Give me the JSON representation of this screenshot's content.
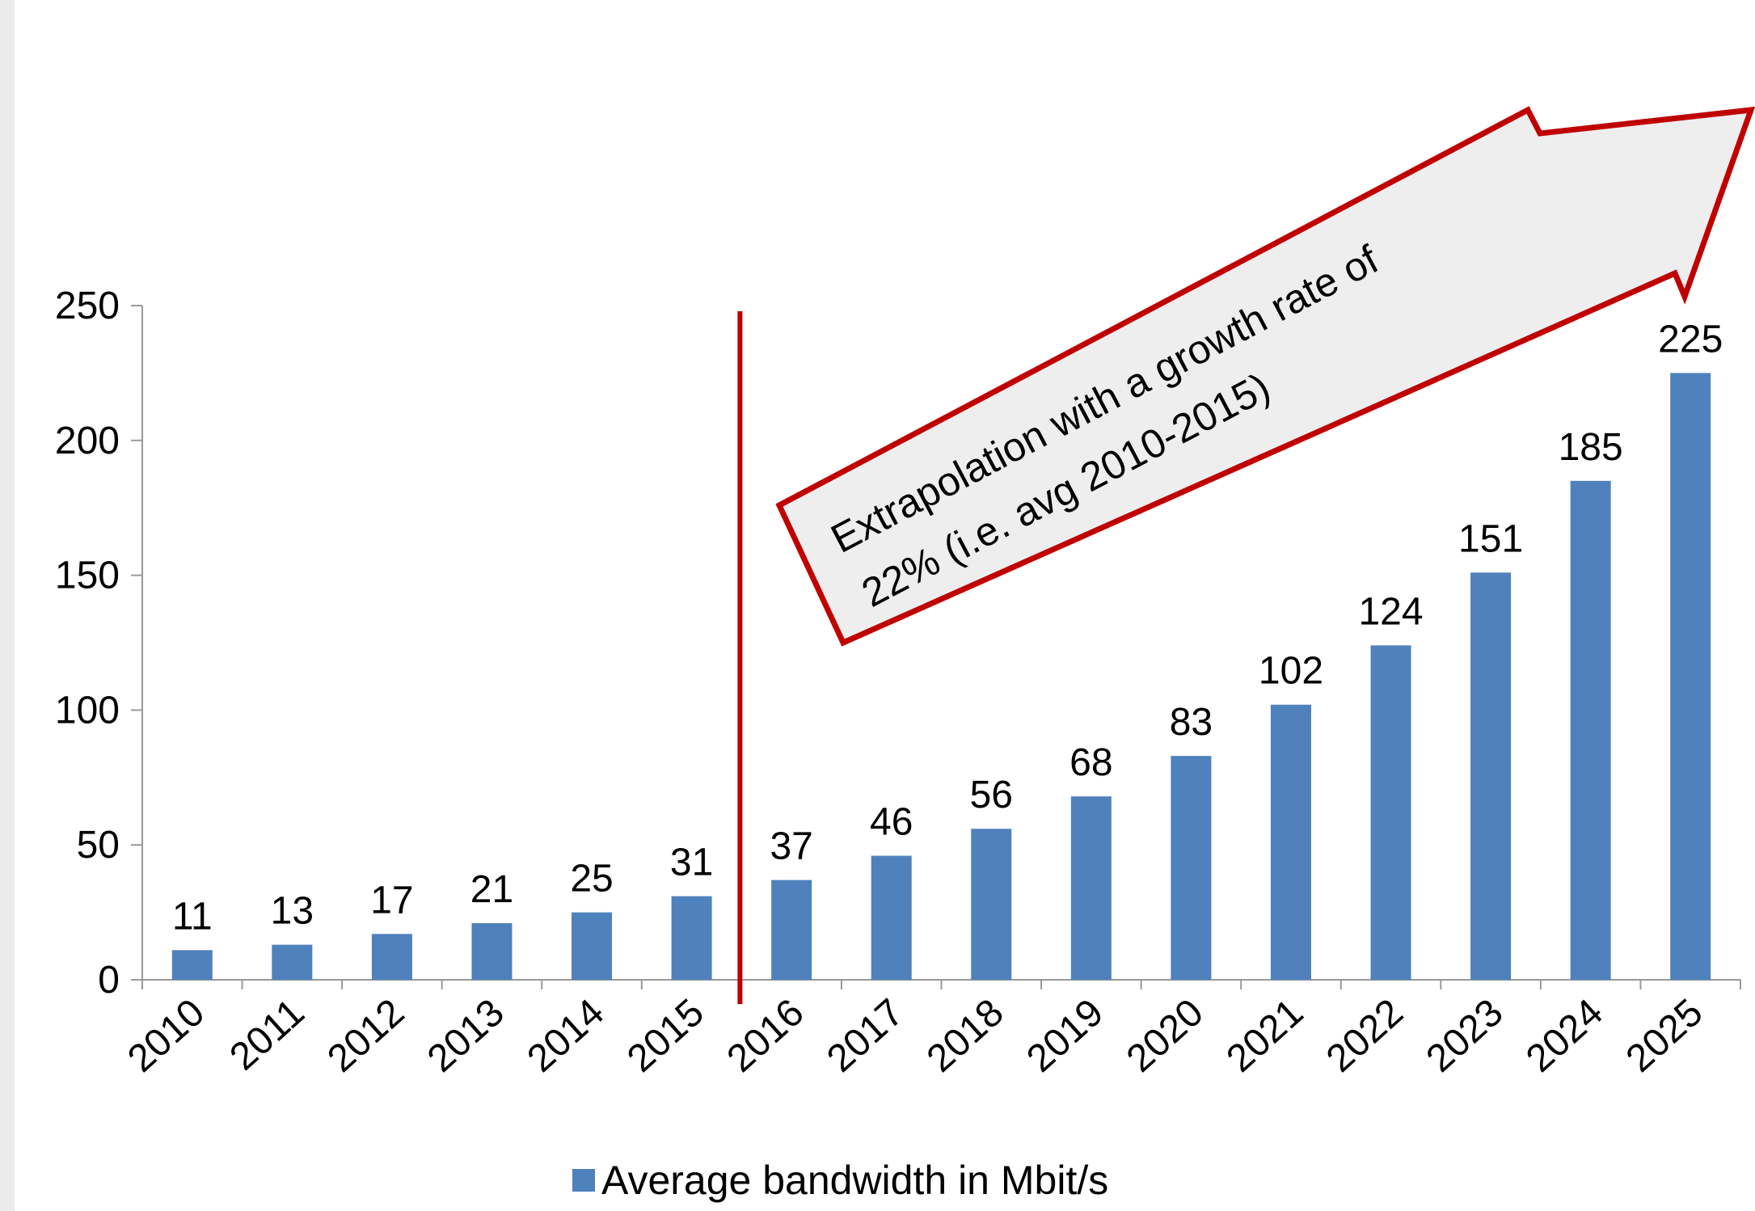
{
  "colors": {
    "bar": "#4f81bd",
    "divider": "#c00000",
    "arrow_fill": "#eeeeee",
    "arrow_stroke": "#c00000",
    "axis": "#999999"
  },
  "annotation": {
    "line1": "Extrapolation with a growth rate of",
    "line2": "22% (i.e. avg 2010-2015)"
  },
  "chart_data": {
    "type": "bar",
    "categories": [
      "2010",
      "2011",
      "2012",
      "2013",
      "2014",
      "2015",
      "2016",
      "2017",
      "2018",
      "2019",
      "2020",
      "2021",
      "2022",
      "2023",
      "2024",
      "2025"
    ],
    "series": [
      {
        "name": "Average bandwidth in Mbit/s",
        "values": [
          11,
          13,
          17,
          21,
          25,
          31,
          37,
          46,
          56,
          68,
          83,
          102,
          124,
          151,
          185,
          225
        ]
      }
    ],
    "ylim": [
      0,
      250
    ],
    "yticks": [
      0,
      50,
      100,
      150,
      200,
      250
    ],
    "data_labels": true,
    "legend": "bottom",
    "grid": false,
    "divider_after": "2015"
  }
}
